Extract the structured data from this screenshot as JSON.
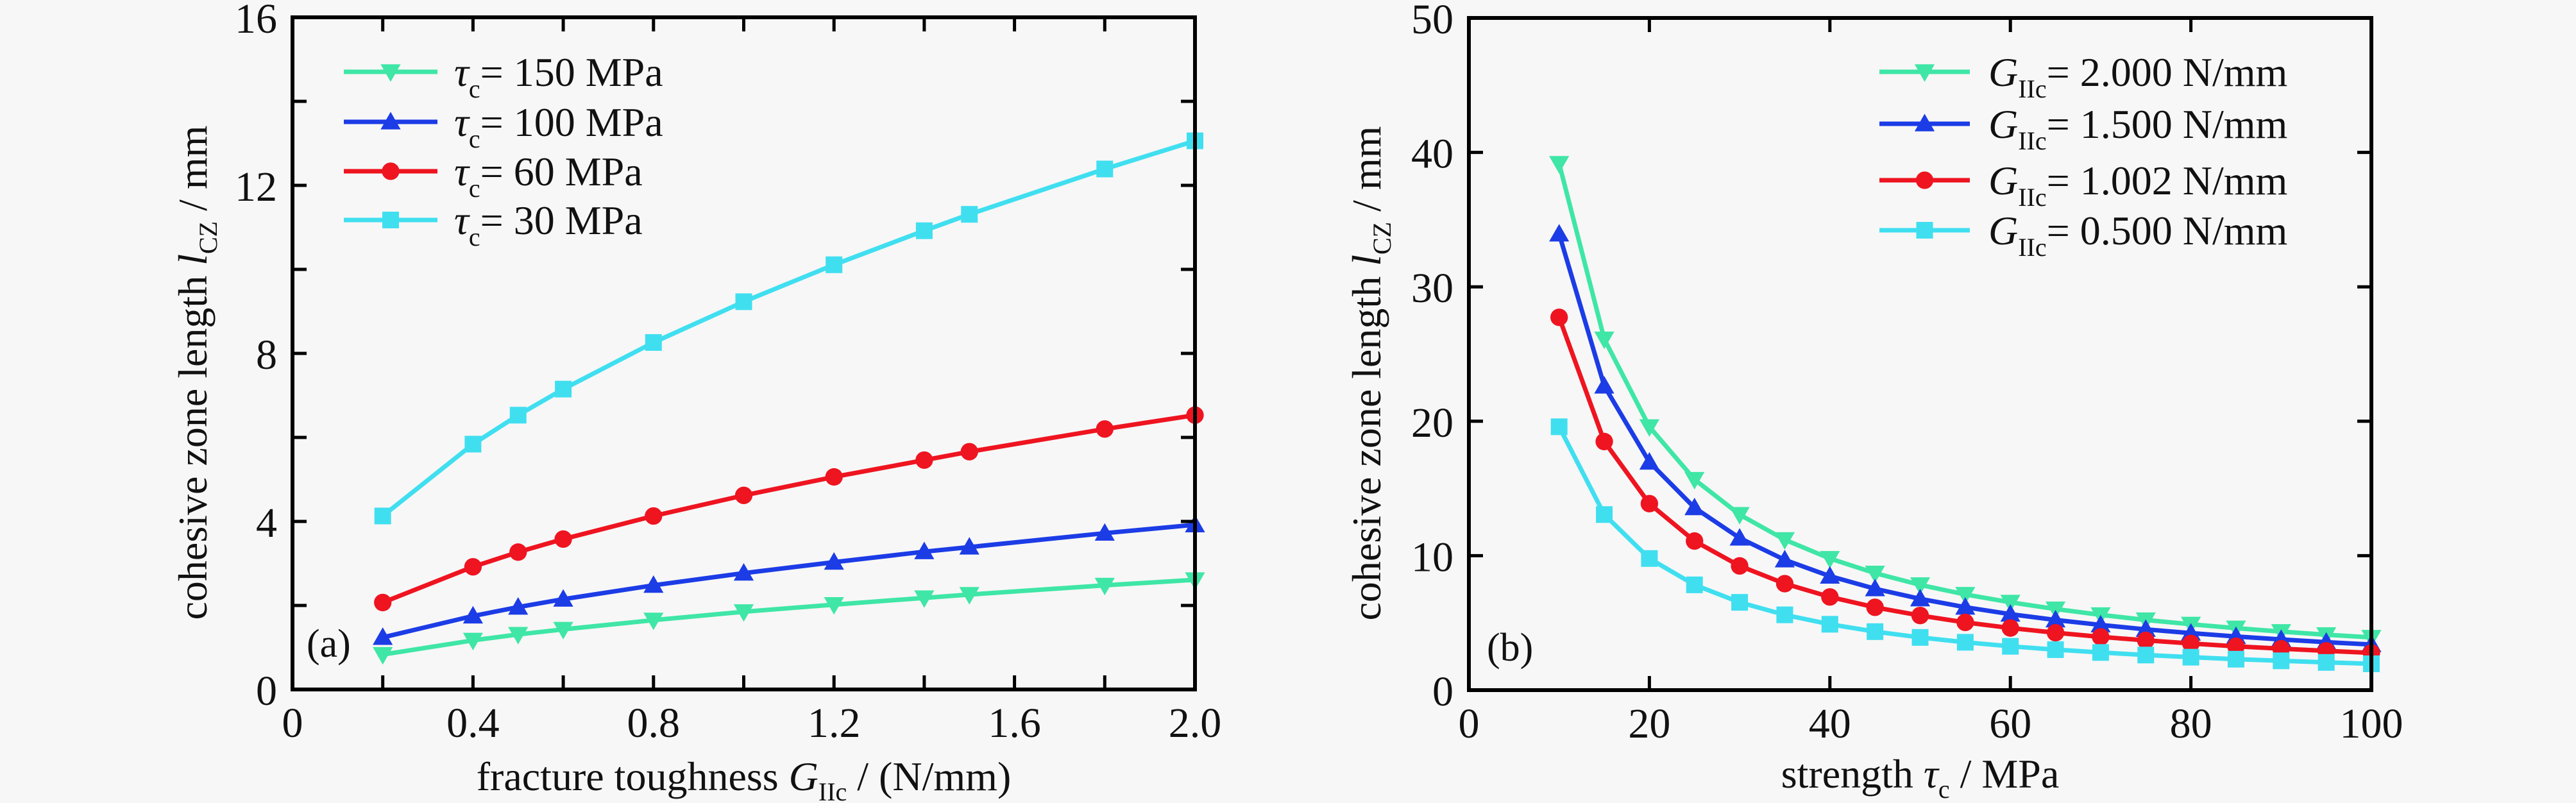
{
  "chart_data": [
    {
      "id": "a",
      "type": "line",
      "panel_label": "(a)",
      "title": "",
      "xlabel": "fracture toughness G_IIc / (N/mm)",
      "xlabel_parts": {
        "prefix": "fracture toughness ",
        "symbol": "G",
        "subscript": "IIc",
        "suffix": " / (N/mm)"
      },
      "ylabel": "cohesive zone length l_CZ / mm",
      "ylabel_parts": {
        "prefix": "cohesive zone length ",
        "symbol": "l",
        "subscript": "CZ",
        "suffix": " / mm"
      },
      "xlim": [
        0,
        2.0
      ],
      "ylim": [
        0,
        16
      ],
      "xticks_major": [
        0,
        0.4,
        0.8,
        1.2,
        1.6,
        2.0
      ],
      "xtick_labels": [
        "0",
        "0.4",
        "0.8",
        "1.2",
        "1.6",
        "2.0"
      ],
      "xticks_minor": [
        0.2,
        0.6,
        1.0,
        1.4,
        1.8
      ],
      "yticks_major": [
        0,
        4,
        8,
        12,
        16
      ],
      "ytick_labels": [
        "0",
        "4",
        "8",
        "12",
        "16"
      ],
      "yticks_minor": [
        2,
        6,
        10,
        14
      ],
      "grid": false,
      "legend_position": "top-left",
      "x": [
        0.2,
        0.4,
        0.5,
        0.6,
        0.8,
        1.0,
        1.2,
        1.4,
        1.5,
        1.8,
        2.0
      ],
      "series": [
        {
          "name": "τc = 150 MPa",
          "symbol": "τ",
          "subscript": "c",
          "label_value": "= 150 MPa",
          "marker": "triangle-down",
          "color": "#3fe6a6",
          "values": [
            0.83,
            1.17,
            1.31,
            1.43,
            1.65,
            1.85,
            2.02,
            2.18,
            2.26,
            2.48,
            2.61
          ]
        },
        {
          "name": "τc = 100 MPa",
          "symbol": "τ",
          "subscript": "c",
          "label_value": "= 100 MPa",
          "marker": "triangle-up",
          "color": "#1c3ce6",
          "values": [
            1.24,
            1.75,
            1.96,
            2.15,
            2.48,
            2.77,
            3.03,
            3.28,
            3.39,
            3.72,
            3.92
          ]
        },
        {
          "name": "τc = 60 MPa",
          "symbol": "τ",
          "subscript": "c",
          "label_value": "= 60 MPa",
          "marker": "circle",
          "color": "#ee1420",
          "values": [
            2.07,
            2.92,
            3.27,
            3.58,
            4.13,
            4.62,
            5.06,
            5.46,
            5.66,
            6.2,
            6.53
          ]
        },
        {
          "name": "τc = 30 MPa",
          "symbol": "τ",
          "subscript": "c",
          "label_value": "= 30 MPa",
          "marker": "square",
          "color": "#40dff0",
          "values": [
            4.13,
            5.84,
            6.53,
            7.15,
            8.26,
            9.23,
            10.11,
            10.92,
            11.31,
            12.39,
            13.06
          ]
        }
      ]
    },
    {
      "id": "b",
      "type": "line",
      "panel_label": "(b)",
      "title": "",
      "xlabel": "strength τc / MPa",
      "xlabel_parts": {
        "prefix": "strength ",
        "symbol": "τ",
        "subscript": "c",
        "suffix": " / MPa"
      },
      "ylabel": "cohesive zone length l_CZ / mm",
      "ylabel_parts": {
        "prefix": "cohesive zone length ",
        "symbol": "l",
        "subscript": "CZ",
        "suffix": " / mm"
      },
      "xlim": [
        0,
        100
      ],
      "ylim": [
        0,
        50
      ],
      "xticks_major": [
        0,
        20,
        40,
        60,
        80,
        100
      ],
      "xtick_labels": [
        "0",
        "20",
        "40",
        "60",
        "80",
        "100"
      ],
      "xticks_minor": [],
      "yticks_major": [
        0,
        10,
        20,
        30,
        40,
        50
      ],
      "ytick_labels": [
        "0",
        "10",
        "20",
        "30",
        "40",
        "50"
      ],
      "yticks_minor": [],
      "grid": false,
      "legend_position": "top-right",
      "x": [
        10,
        15,
        20,
        25,
        30,
        35,
        40,
        45,
        50,
        55,
        60,
        65,
        70,
        75,
        80,
        85,
        90,
        95,
        100
      ],
      "series": [
        {
          "name": "GIIc = 2.000 N/mm",
          "symbol": "G",
          "subscript": "IIc",
          "label_value": "= 2.000 N/mm",
          "marker": "triangle-down",
          "color": "#3fe6a6",
          "values": [
            39.17,
            26.11,
            19.59,
            15.67,
            13.06,
            11.19,
            9.79,
            8.7,
            7.83,
            7.12,
            6.53,
            6.03,
            5.6,
            5.22,
            4.9,
            4.61,
            4.35,
            4.12,
            3.92
          ]
        },
        {
          "name": "GIIc = 1.500 N/mm",
          "symbol": "G",
          "subscript": "IIc",
          "label_value": "= 1.500 N/mm",
          "marker": "triangle-up",
          "color": "#1c3ce6",
          "values": [
            33.93,
            22.62,
            16.96,
            13.57,
            11.31,
            9.69,
            8.48,
            7.54,
            6.79,
            6.17,
            5.65,
            5.22,
            4.85,
            4.52,
            4.24,
            3.99,
            3.77,
            3.57,
            3.39
          ]
        },
        {
          "name": "GIIc = 1.002 N/mm",
          "symbol": "G",
          "subscript": "IIc",
          "label_value": "= 1.002 N/mm",
          "marker": "circle",
          "color": "#ee1420",
          "values": [
            27.73,
            18.49,
            13.87,
            11.09,
            9.24,
            7.92,
            6.93,
            6.16,
            5.55,
            5.04,
            4.62,
            4.27,
            3.96,
            3.7,
            3.47,
            3.26,
            3.08,
            2.92,
            2.77
          ]
        },
        {
          "name": "GIIc = 0.500 N/mm",
          "symbol": "G",
          "subscript": "IIc",
          "label_value": "= 0.500 N/mm",
          "marker": "square",
          "color": "#40dff0",
          "values": [
            19.59,
            13.06,
            9.79,
            7.83,
            6.53,
            5.6,
            4.9,
            4.35,
            3.92,
            3.56,
            3.26,
            3.01,
            2.8,
            2.61,
            2.45,
            2.3,
            2.18,
            2.06,
            1.96
          ]
        }
      ]
    }
  ]
}
